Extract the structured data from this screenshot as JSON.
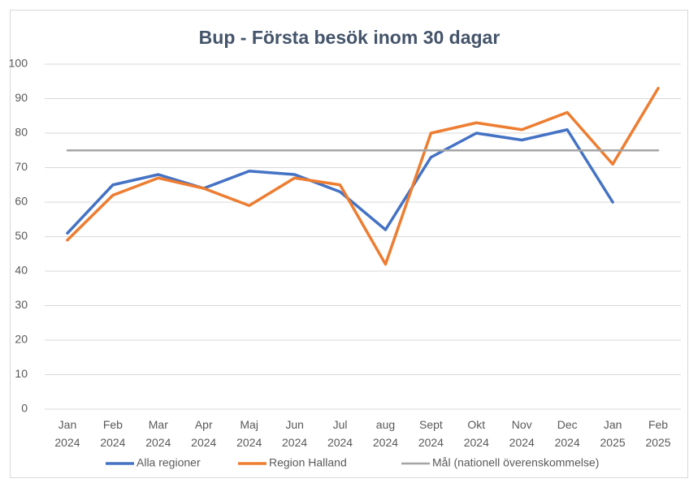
{
  "chart_data": {
    "type": "line",
    "title": "Bup - Första besök inom 30 dagar",
    "categories": [
      "Jan 2024",
      "Feb 2024",
      "Mar 2024",
      "Apr 2024",
      "Maj 2024",
      "Jun 2024",
      "Jul 2024",
      "aug 2024",
      "Sept 2024",
      "Okt 2024",
      "Nov 2024",
      "Dec 2024",
      "Jan 2025",
      "Feb 2025"
    ],
    "series": [
      {
        "name": "Alla regioner",
        "color": "#4472c4",
        "values": [
          51,
          65,
          68,
          64,
          69,
          68,
          63,
          52,
          73,
          80,
          78,
          81,
          60,
          null
        ]
      },
      {
        "name": "Region Halland",
        "color": "#ed7d31",
        "values": [
          49,
          62,
          67,
          64,
          59,
          67,
          65,
          42,
          80,
          83,
          81,
          86,
          71,
          93
        ]
      },
      {
        "name": "Mål (nationell överenskommelse)",
        "color": "#a5a5a5",
        "values": [
          75,
          75,
          75,
          75,
          75,
          75,
          75,
          75,
          75,
          75,
          75,
          75,
          75,
          75
        ]
      }
    ],
    "ylim": [
      0,
      100
    ],
    "yticks": [
      0,
      10,
      20,
      30,
      40,
      50,
      60,
      70,
      80,
      90,
      100
    ],
    "grid": true,
    "legend": "bottom"
  }
}
